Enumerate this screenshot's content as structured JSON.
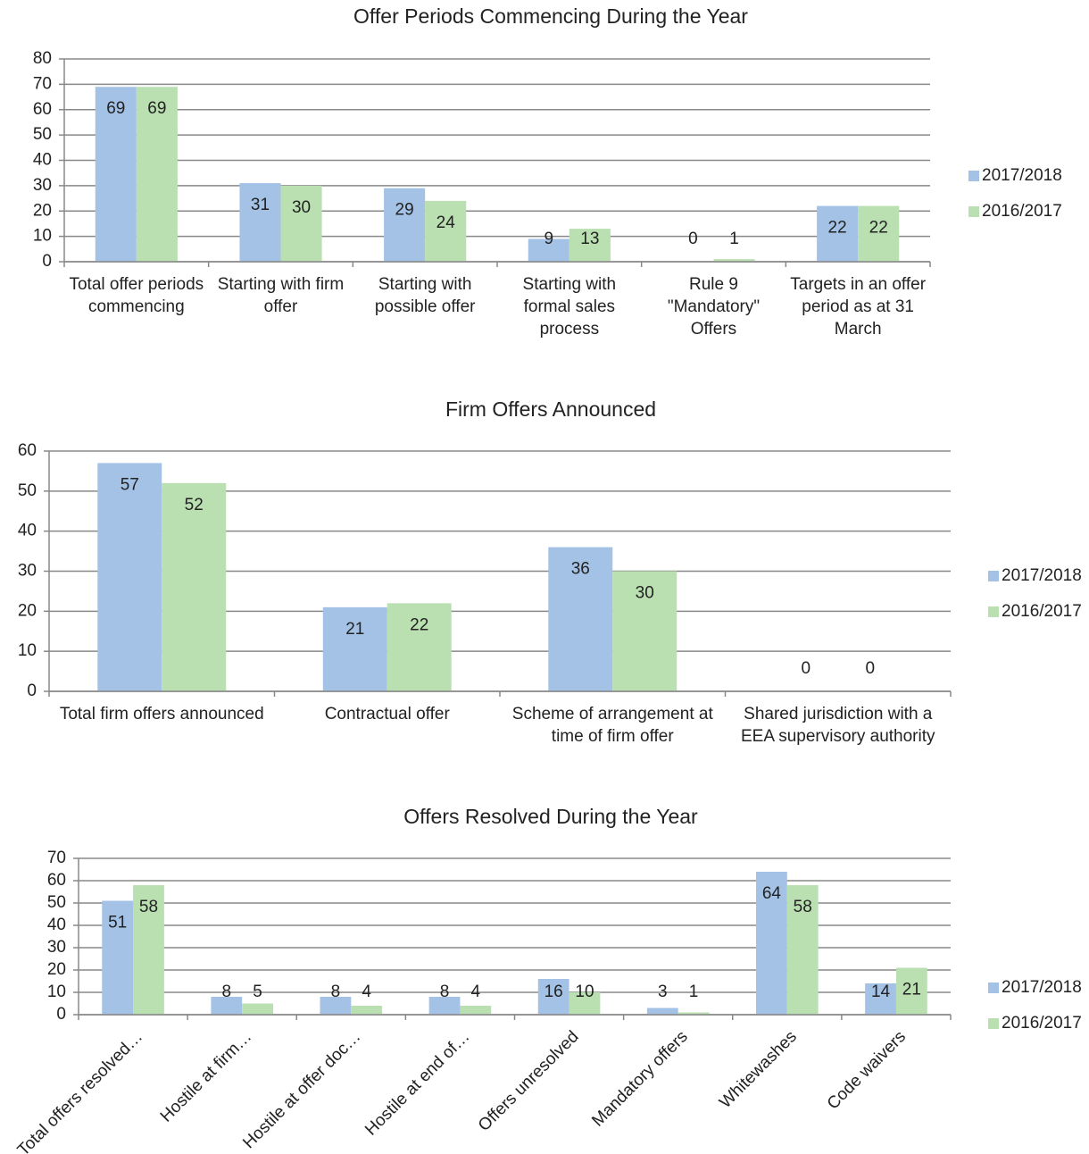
{
  "chart_data": [
    {
      "type": "bar",
      "title": "Offer Periods Commencing During the Year",
      "categories": [
        "Total offer periods commencing",
        "Starting with firm offer",
        "Starting with possible offer",
        "Starting with formal sales process",
        "Rule 9 \"Mandatory\" Offers",
        "Targets in an offer period as at 31 March"
      ],
      "series": [
        {
          "name": "2017/2018",
          "color": "#a4c2e6",
          "values": [
            69,
            31,
            29,
            9,
            0,
            22
          ]
        },
        {
          "name": "2016/2017",
          "color": "#badfb1",
          "values": [
            69,
            30,
            24,
            13,
            1,
            22
          ]
        }
      ],
      "ylim": [
        0,
        80
      ],
      "yticks": [
        0,
        10,
        20,
        30,
        40,
        50,
        60,
        70,
        80
      ],
      "grid": true,
      "legend": "right"
    },
    {
      "type": "bar",
      "title": "Firm Offers Announced",
      "categories": [
        "Total firm offers announced",
        "Contractual offer",
        "Scheme of arrangement at time of firm offer",
        "Shared jurisdiction with a EEA supervisory authority"
      ],
      "series": [
        {
          "name": "2017/2018",
          "color": "#a4c2e6",
          "values": [
            57,
            21,
            36,
            0
          ]
        },
        {
          "name": "2016/2017",
          "color": "#badfb1",
          "values": [
            52,
            22,
            30,
            0
          ]
        }
      ],
      "ylim": [
        0,
        60
      ],
      "yticks": [
        0,
        10,
        20,
        30,
        40,
        50,
        60
      ],
      "grid": true,
      "legend": "right"
    },
    {
      "type": "bar",
      "title": "Offers Resolved During the Year",
      "categories": [
        "Total offers resolved…",
        "Hostile at firm…",
        "Hostile at offer doc…",
        "Hostile at end of…",
        "Offers unresolved",
        "Mandatory offers",
        "Whitewashes",
        "Code waivers"
      ],
      "series": [
        {
          "name": "2017/2018",
          "color": "#a4c2e6",
          "values": [
            51,
            8,
            8,
            8,
            16,
            3,
            64,
            14
          ]
        },
        {
          "name": "2016/2017",
          "color": "#badfb1",
          "values": [
            58,
            5,
            4,
            4,
            10,
            1,
            58,
            21
          ]
        }
      ],
      "ylim": [
        0,
        70
      ],
      "yticks": [
        0,
        10,
        20,
        30,
        40,
        50,
        60,
        70
      ],
      "grid": true,
      "legend": "right",
      "rotate_labels": true
    }
  ]
}
